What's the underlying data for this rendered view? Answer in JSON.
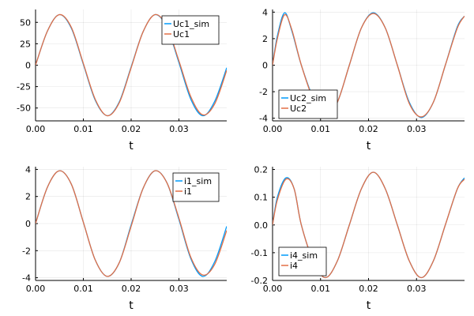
{
  "chart_data": [
    {
      "type": "line",
      "xlabel": "t",
      "ylabel": "",
      "xlim": [
        0,
        0.04
      ],
      "ylim": [
        -65,
        65
      ],
      "xticks": [
        0,
        0.01,
        0.02,
        0.03
      ],
      "xtick_labels": [
        "0.00",
        "0.01",
        "0.02",
        "0.03"
      ],
      "yticks": [
        -50,
        -25,
        0,
        25,
        50
      ],
      "ytick_labels": [
        "-50",
        "-25",
        "0",
        "25",
        "50"
      ],
      "grid": true,
      "legend_position": "top-right",
      "series": [
        {
          "name": "Uc1_sim",
          "color": "#009AFA",
          "x": [
            0,
            0.0025,
            0.005,
            0.0075,
            0.01,
            0.0125,
            0.015,
            0.0175,
            0.02,
            0.0225,
            0.025,
            0.0275,
            0.03,
            0.0325,
            0.035,
            0.0375,
            0.04
          ],
          "y": [
            0,
            40,
            59,
            43,
            1,
            -41,
            -59,
            -43,
            -2,
            39,
            59,
            44,
            3,
            -40,
            -59,
            -42,
            -3
          ]
        },
        {
          "name": "Uc1",
          "color": "#E26F46",
          "x": [
            0,
            0.0025,
            0.005,
            0.0075,
            0.01,
            0.0125,
            0.015,
            0.0175,
            0.02,
            0.0225,
            0.025,
            0.0275,
            0.03,
            0.0325,
            0.035,
            0.0375,
            0.04
          ],
          "y": [
            0,
            40,
            59,
            44,
            2,
            -40,
            -59,
            -44,
            -3,
            39,
            59,
            45,
            5,
            -37,
            -58,
            -45,
            -6
          ]
        }
      ]
    },
    {
      "type": "line",
      "xlabel": "t",
      "ylabel": "",
      "xlim": [
        0,
        0.04
      ],
      "ylim": [
        -4.2,
        4.2
      ],
      "xticks": [
        0,
        0.01,
        0.02,
        0.03
      ],
      "xtick_labels": [
        "0.00",
        "0.01",
        "0.02",
        "0.03"
      ],
      "yticks": [
        -4,
        -2,
        0,
        2,
        4
      ],
      "ytick_labels": [
        "-4",
        "-2",
        "0",
        "2",
        "4"
      ],
      "grid": true,
      "legend_position": "bottom-left",
      "series": [
        {
          "name": "Uc2_sim",
          "color": "#009AFA",
          "x": [
            0,
            0.001,
            0.0025,
            0.004,
            0.006,
            0.0085,
            0.011,
            0.0135,
            0.016,
            0.0185,
            0.021,
            0.0235,
            0.026,
            0.0285,
            0.031,
            0.0335,
            0.036,
            0.0385,
            0.04
          ],
          "y": [
            0,
            2.2,
            3.95,
            2.6,
            0,
            -2.5,
            -3.9,
            -2.8,
            0,
            2.8,
            3.95,
            2.8,
            0,
            -2.8,
            -3.95,
            -2.8,
            0,
            2.9,
            3.7
          ]
        },
        {
          "name": "Uc2",
          "color": "#E26F46",
          "x": [
            0,
            0.001,
            0.0025,
            0.004,
            0.006,
            0.0085,
            0.011,
            0.0135,
            0.016,
            0.0185,
            0.021,
            0.0235,
            0.026,
            0.0285,
            0.031,
            0.0335,
            0.036,
            0.0385,
            0.04
          ],
          "y": [
            0,
            2.0,
            3.8,
            2.7,
            0,
            -2.6,
            -3.9,
            -2.8,
            0,
            2.8,
            3.9,
            2.8,
            0,
            -2.9,
            -3.9,
            -2.8,
            0,
            2.8,
            3.7
          ]
        }
      ]
    },
    {
      "type": "line",
      "xlabel": "t",
      "ylabel": "",
      "xlim": [
        0,
        0.04
      ],
      "ylim": [
        -4.2,
        4.2
      ],
      "xticks": [
        0,
        0.01,
        0.02,
        0.03
      ],
      "xtick_labels": [
        "0.00",
        "0.01",
        "0.02",
        "0.03"
      ],
      "yticks": [
        -4,
        -2,
        0,
        2,
        4
      ],
      "ytick_labels": [
        "-4",
        "-2",
        "0",
        "2",
        "4"
      ],
      "grid": true,
      "legend_position": "top-right",
      "series": [
        {
          "name": "i1_sim",
          "color": "#009AFA",
          "x": [
            0,
            0.0025,
            0.005,
            0.0075,
            0.01,
            0.0125,
            0.015,
            0.0175,
            0.02,
            0.0225,
            0.025,
            0.0275,
            0.03,
            0.0325,
            0.035,
            0.0375,
            0.04
          ],
          "y": [
            0,
            2.7,
            3.9,
            2.9,
            0.1,
            -2.7,
            -3.9,
            -2.9,
            -0.1,
            2.6,
            3.9,
            3.0,
            0.3,
            -2.6,
            -3.9,
            -2.8,
            -0.2
          ]
        },
        {
          "name": "i1",
          "color": "#E26F46",
          "x": [
            0,
            0.0025,
            0.005,
            0.0075,
            0.01,
            0.0125,
            0.015,
            0.0175,
            0.02,
            0.0225,
            0.025,
            0.0275,
            0.03,
            0.0325,
            0.035,
            0.0375,
            0.04
          ],
          "y": [
            0,
            2.7,
            3.9,
            2.9,
            0.1,
            -2.7,
            -3.9,
            -2.9,
            -0.2,
            2.6,
            3.9,
            3.0,
            0.4,
            -2.5,
            -3.8,
            -3.0,
            -0.5
          ]
        }
      ]
    },
    {
      "type": "line",
      "xlabel": "t",
      "ylabel": "",
      "xlim": [
        0,
        0.04
      ],
      "ylim": [
        -0.2,
        0.21
      ],
      "xticks": [
        0,
        0.01,
        0.02,
        0.03
      ],
      "xtick_labels": [
        "0.00",
        "0.01",
        "0.02",
        "0.03"
      ],
      "yticks": [
        -0.2,
        -0.1,
        0,
        0.1,
        0.2
      ],
      "ytick_labels": [
        "-0.2",
        "-0.1",
        "0.0",
        "0.1",
        "0.2"
      ],
      "grid": true,
      "legend_position": "bottom-left",
      "series": [
        {
          "name": "i4_sim",
          "color": "#009AFA",
          "x": [
            0,
            0.001,
            0.0028,
            0.0045,
            0.006,
            0.0085,
            0.011,
            0.0135,
            0.016,
            0.0185,
            0.021,
            0.0235,
            0.026,
            0.0285,
            0.031,
            0.0335,
            0.036,
            0.0385,
            0.04
          ],
          "y": [
            0,
            0.1,
            0.17,
            0.13,
            0,
            -0.13,
            -0.19,
            -0.13,
            0,
            0.13,
            0.19,
            0.13,
            0,
            -0.13,
            -0.19,
            -0.13,
            0,
            0.13,
            0.17
          ]
        },
        {
          "name": "i4",
          "color": "#E26F46",
          "x": [
            0,
            0.001,
            0.0028,
            0.0045,
            0.006,
            0.0085,
            0.011,
            0.0135,
            0.016,
            0.0185,
            0.021,
            0.0235,
            0.026,
            0.0285,
            0.031,
            0.0335,
            0.036,
            0.0385,
            0.04
          ],
          "y": [
            0,
            0.09,
            0.165,
            0.13,
            0,
            -0.13,
            -0.19,
            -0.13,
            0,
            0.13,
            0.19,
            0.13,
            0,
            -0.13,
            -0.19,
            -0.13,
            0,
            0.13,
            0.165
          ]
        }
      ]
    }
  ]
}
